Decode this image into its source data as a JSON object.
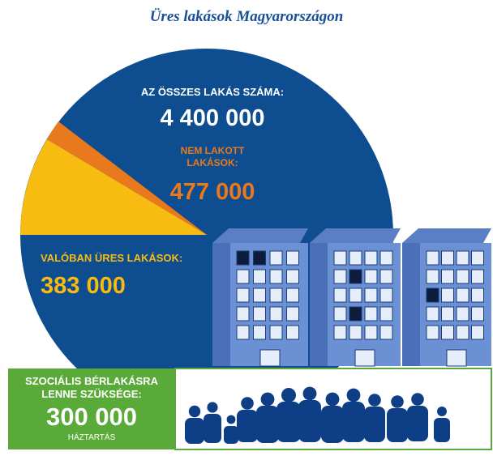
{
  "title": "Üres lakások Magyarországon",
  "total": {
    "label": "AZ ÖSSZES LAKÁS SZÁMA:",
    "value": "4 400 000"
  },
  "unoccupied": {
    "label_lines": [
      "NEM LAKOTT",
      "LAKÁSOK:"
    ],
    "value": "477 000"
  },
  "empty": {
    "label": "VALÓBAN ÜRES LAKÁSOK:",
    "value": "383 000"
  },
  "social": {
    "label_lines": [
      "SZOCIÁLIS BÉRLAKÁSRA",
      "LENNE SZÜKSÉGE:"
    ],
    "value": "300 000",
    "unit": "HÁZTARTÁS"
  }
}
